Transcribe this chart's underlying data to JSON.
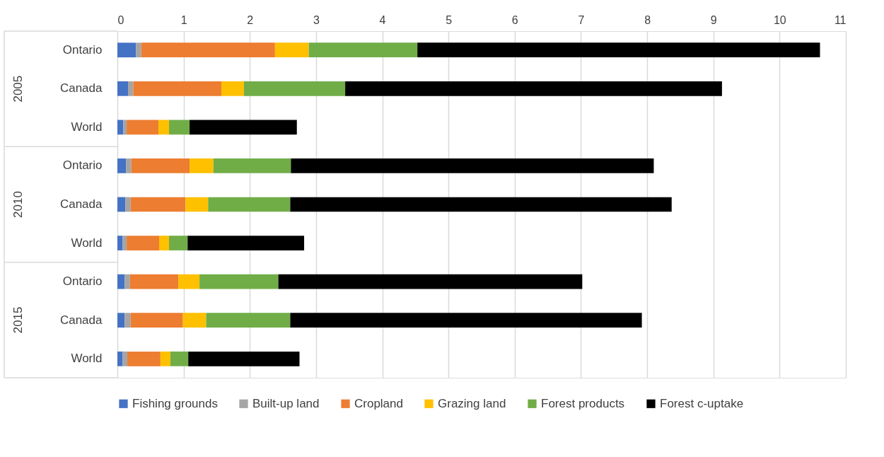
{
  "chart_data": {
    "type": "bar",
    "orientation": "horizontal",
    "stacked": true,
    "categories": [
      "Ontario",
      "Canada",
      "World",
      "Ontario",
      "Canada",
      "World",
      "Ontario",
      "Canada",
      "World"
    ],
    "annotations": [
      "2005",
      "2010",
      "2015"
    ],
    "series": [
      {
        "name": "Fishing grounds",
        "color": "#4472c4",
        "values": [
          0.28,
          0.16,
          0.09,
          0.13,
          0.12,
          0.08,
          0.11,
          0.11,
          0.08
        ]
      },
      {
        "name": "Built-up land",
        "color": "#a5a5a5",
        "values": [
          0.08,
          0.08,
          0.05,
          0.08,
          0.08,
          0.06,
          0.08,
          0.09,
          0.07
        ]
      },
      {
        "name": "Cropland",
        "color": "#ed7d31",
        "values": [
          2.02,
          1.33,
          0.48,
          0.88,
          0.83,
          0.49,
          0.73,
          0.79,
          0.5
        ]
      },
      {
        "name": "Grazing land",
        "color": "#ffc000",
        "values": [
          0.51,
          0.34,
          0.16,
          0.36,
          0.34,
          0.15,
          0.32,
          0.35,
          0.15
        ]
      },
      {
        "name": "Forest products",
        "color": "#70ad47",
        "values": [
          1.64,
          1.53,
          0.31,
          1.17,
          1.24,
          0.28,
          1.19,
          1.27,
          0.27
        ]
      },
      {
        "name": "Forest c-uptake",
        "color": "#000000",
        "values": [
          6.08,
          5.69,
          1.62,
          5.48,
          5.76,
          1.76,
          4.59,
          5.31,
          1.68
        ]
      }
    ],
    "xlim": [
      0,
      11
    ],
    "xticks": [
      0,
      1,
      2,
      3,
      4,
      5,
      6,
      7,
      8,
      9,
      10,
      11
    ],
    "grid": "x",
    "legend": "bottom"
  }
}
